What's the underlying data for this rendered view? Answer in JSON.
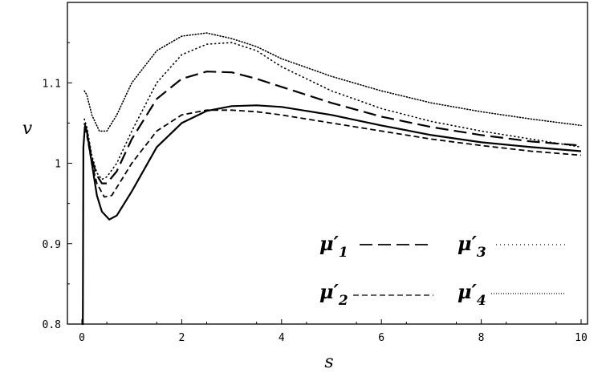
{
  "chart_data": {
    "type": "line",
    "title": "",
    "xlabel": "s",
    "ylabel": "v",
    "xlim": [
      0,
      10
    ],
    "ylim": [
      0.8,
      1.2
    ],
    "x_ticks": [
      "0",
      "2",
      "4",
      "6",
      "8",
      "10"
    ],
    "y_ticks": [
      "0.8",
      "0.9",
      "1",
      "1.1"
    ],
    "grid": false,
    "legend_position": "bottom-right",
    "legend": [
      {
        "label": "μ′",
        "sub": "1",
        "style": "long-dash"
      },
      {
        "label": "μ′",
        "sub": "2",
        "style": "short-dash"
      },
      {
        "label": "μ′",
        "sub": "3",
        "style": "sparse-dot"
      },
      {
        "label": "μ′",
        "sub": "4",
        "style": "dense-dot"
      }
    ],
    "series": [
      {
        "style": "solid",
        "points": [
          [
            0.0,
            0.8
          ],
          [
            0.02,
            0.8
          ],
          [
            0.03,
            1.02
          ],
          [
            0.06,
            1.045
          ],
          [
            0.1,
            1.04
          ],
          [
            0.2,
            1.0
          ],
          [
            0.3,
            0.96
          ],
          [
            0.4,
            0.94
          ],
          [
            0.55,
            0.93
          ],
          [
            0.7,
            0.935
          ],
          [
            1.0,
            0.965
          ],
          [
            1.5,
            1.02
          ],
          [
            2.0,
            1.05
          ],
          [
            2.5,
            1.065
          ],
          [
            3.0,
            1.071
          ],
          [
            3.5,
            1.072
          ],
          [
            4.0,
            1.07
          ],
          [
            5.0,
            1.06
          ],
          [
            6.0,
            1.047
          ],
          [
            7.0,
            1.035
          ],
          [
            8.0,
            1.026
          ],
          [
            9.0,
            1.02
          ],
          [
            10.0,
            1.015
          ]
        ]
      },
      {
        "style": "long-dash",
        "points": [
          [
            0.05,
            1.05
          ],
          [
            0.1,
            1.04
          ],
          [
            0.2,
            1.005
          ],
          [
            0.3,
            0.985
          ],
          [
            0.4,
            0.975
          ],
          [
            0.5,
            0.975
          ],
          [
            0.7,
            0.99
          ],
          [
            1.0,
            1.03
          ],
          [
            1.5,
            1.08
          ],
          [
            2.0,
            1.105
          ],
          [
            2.5,
            1.114
          ],
          [
            3.0,
            1.113
          ],
          [
            3.5,
            1.105
          ],
          [
            4.0,
            1.095
          ],
          [
            5.0,
            1.075
          ],
          [
            6.0,
            1.058
          ],
          [
            7.0,
            1.045
          ],
          [
            8.0,
            1.035
          ],
          [
            9.0,
            1.027
          ],
          [
            10.0,
            1.022
          ]
        ]
      },
      {
        "style": "short-dash",
        "points": [
          [
            0.05,
            1.045
          ],
          [
            0.1,
            1.035
          ],
          [
            0.2,
            1.0
          ],
          [
            0.3,
            0.975
          ],
          [
            0.45,
            0.958
          ],
          [
            0.6,
            0.96
          ],
          [
            0.8,
            0.98
          ],
          [
            1.0,
            1.0
          ],
          [
            1.5,
            1.04
          ],
          [
            2.0,
            1.06
          ],
          [
            2.5,
            1.066
          ],
          [
            3.0,
            1.066
          ],
          [
            3.5,
            1.064
          ],
          [
            4.0,
            1.06
          ],
          [
            5.0,
            1.05
          ],
          [
            6.0,
            1.04
          ],
          [
            7.0,
            1.03
          ],
          [
            8.0,
            1.022
          ],
          [
            9.0,
            1.015
          ],
          [
            10.0,
            1.01
          ]
        ]
      },
      {
        "style": "sparse-dot",
        "points": [
          [
            0.05,
            1.055
          ],
          [
            0.1,
            1.045
          ],
          [
            0.2,
            1.01
          ],
          [
            0.3,
            0.988
          ],
          [
            0.4,
            0.98
          ],
          [
            0.5,
            0.983
          ],
          [
            0.7,
            1.0
          ],
          [
            1.0,
            1.04
          ],
          [
            1.5,
            1.1
          ],
          [
            2.0,
            1.135
          ],
          [
            2.5,
            1.148
          ],
          [
            3.0,
            1.15
          ],
          [
            3.5,
            1.14
          ],
          [
            4.0,
            1.12
          ],
          [
            5.0,
            1.09
          ],
          [
            6.0,
            1.068
          ],
          [
            7.0,
            1.052
          ],
          [
            8.0,
            1.04
          ],
          [
            9.0,
            1.03
          ],
          [
            10.0,
            1.02
          ]
        ]
      },
      {
        "style": "dense-dot",
        "points": [
          [
            0.05,
            1.09
          ],
          [
            0.1,
            1.085
          ],
          [
            0.2,
            1.06
          ],
          [
            0.35,
            1.04
          ],
          [
            0.5,
            1.04
          ],
          [
            0.7,
            1.06
          ],
          [
            1.0,
            1.1
          ],
          [
            1.5,
            1.14
          ],
          [
            2.0,
            1.158
          ],
          [
            2.5,
            1.162
          ],
          [
            3.0,
            1.155
          ],
          [
            3.5,
            1.145
          ],
          [
            4.0,
            1.13
          ],
          [
            5.0,
            1.108
          ],
          [
            6.0,
            1.09
          ],
          [
            7.0,
            1.075
          ],
          [
            8.0,
            1.064
          ],
          [
            9.0,
            1.055
          ],
          [
            10.0,
            1.047
          ]
        ]
      }
    ]
  }
}
